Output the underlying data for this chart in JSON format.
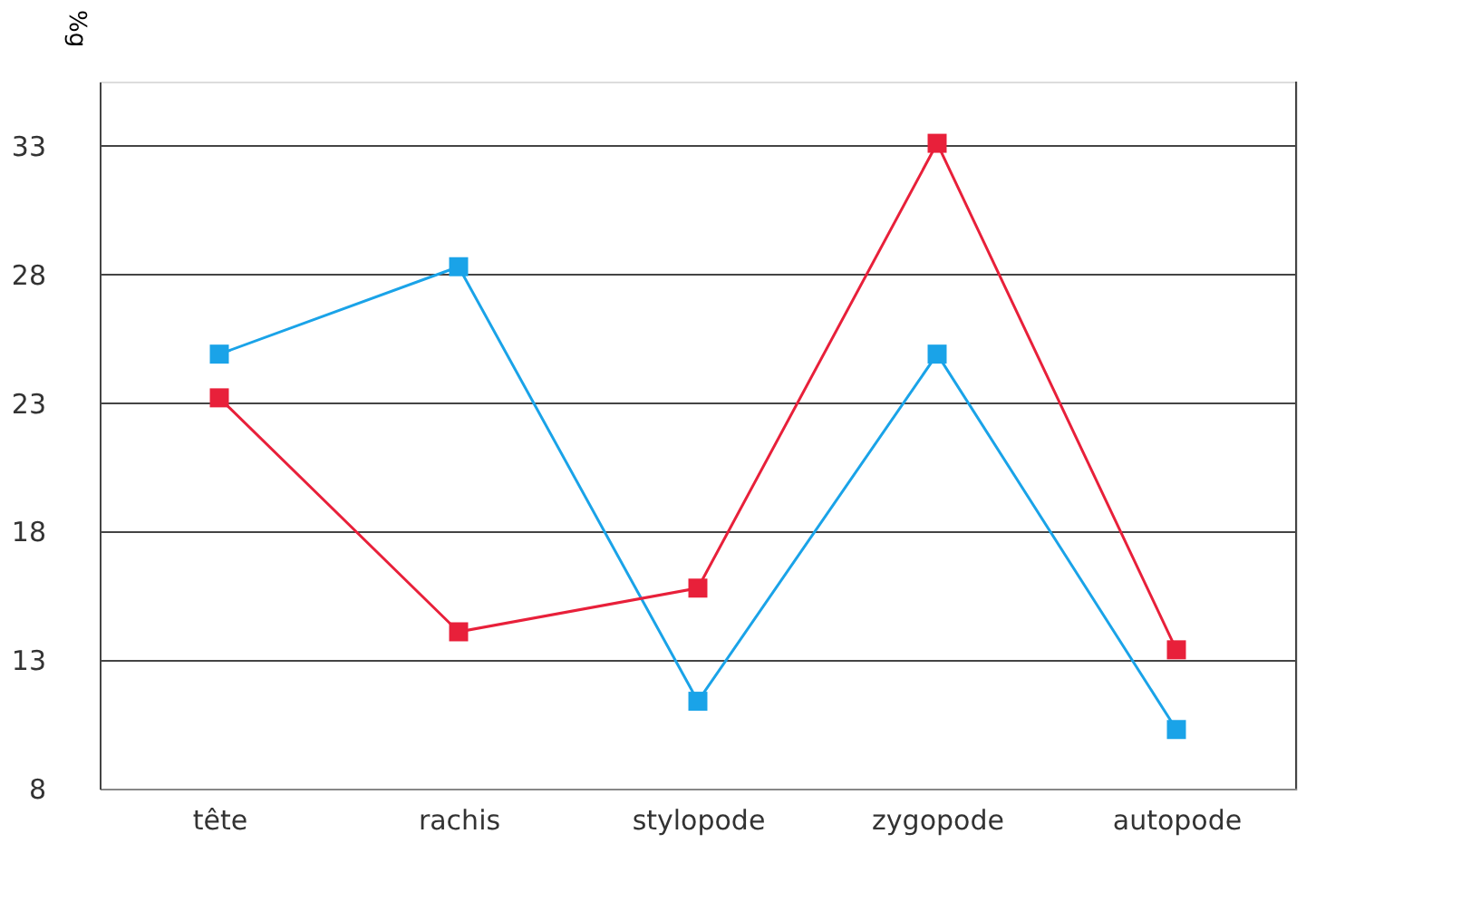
{
  "chart_data": {
    "type": "line",
    "ylabel": "%g",
    "categories": [
      "tête",
      "rachis",
      "stylopode",
      "zygopode",
      "autopode"
    ],
    "series": [
      {
        "color": "#1aa3e8",
        "values": [
          24.9,
          28.3,
          11.4,
          24.9,
          10.3
        ]
      },
      {
        "color": "#e8203a",
        "values": [
          23.2,
          14.1,
          15.8,
          33.1,
          13.4
        ]
      }
    ],
    "ylim": [
      8,
      35.5
    ],
    "yticks": [
      8,
      13,
      18,
      23,
      28,
      33
    ],
    "grid": "y",
    "marker": "square",
    "line_style": "solid",
    "legend": false
  }
}
